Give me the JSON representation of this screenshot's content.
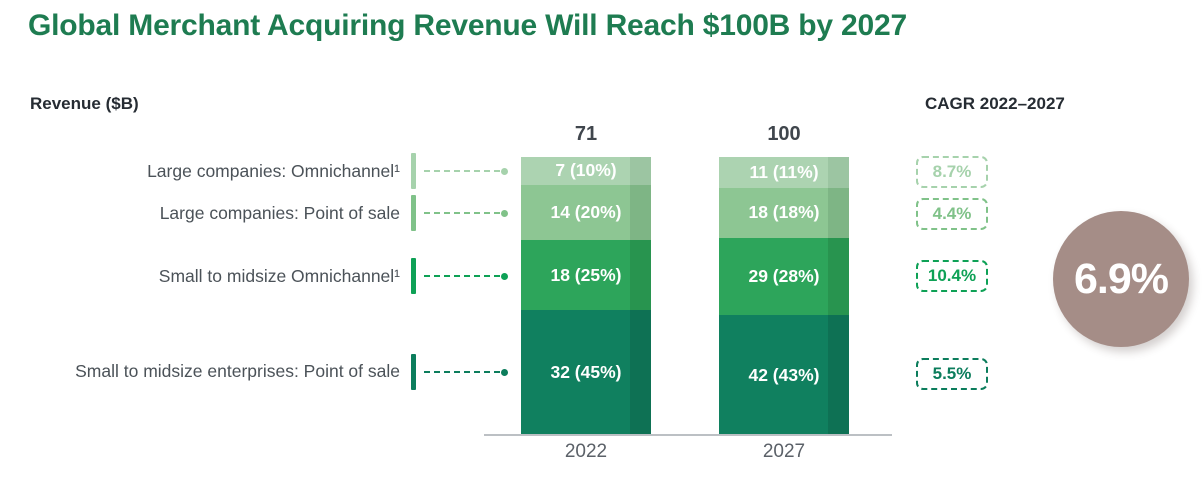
{
  "title": "Global Merchant Acquiring Revenue Will Reach $100B by 2027",
  "left_header": "Revenue ($B)",
  "right_header": "CAGR 2022–2027",
  "highlight": {
    "total_cagr": "6.9%",
    "circle_color": "#a58d87"
  },
  "chart_data": {
    "type": "bar",
    "subtype": "100pct-stacked-column-with-absolute-values",
    "title": "Global Merchant Acquiring Revenue Will Reach $100B by 2027",
    "ylabel": "Revenue ($B)",
    "categories": [
      "2022",
      "2027"
    ],
    "totals": [
      71,
      100
    ],
    "series": [
      {
        "name": "Large companies: Omnichannel¹",
        "values": [
          7,
          11
        ],
        "pct_values": [
          10,
          11
        ],
        "labels": [
          "7 (10%)",
          "11 (11%)"
        ],
        "cagr": "8.7%",
        "color": "#acd3b1",
        "color_edge": "#9cc5a2",
        "accent": "#a6d2ac"
      },
      {
        "name": "Large companies: Point of sale",
        "values": [
          14,
          18
        ],
        "pct_values": [
          20,
          18
        ],
        "labels": [
          "14 (20%)",
          "18 (18%)"
        ],
        "cagr": "4.4%",
        "color": "#8dc693",
        "color_edge": "#7eb585",
        "accent": "#80c289"
      },
      {
        "name": "Small to midsize Omnichannel¹",
        "values": [
          18,
          29
        ],
        "pct_values": [
          25,
          28
        ],
        "labels": [
          "18 (25%)",
          "29 (28%)"
        ],
        "cagr": "10.4%",
        "color": "#2da55b",
        "color_edge": "#28944f",
        "accent": "#0ea156"
      },
      {
        "name": "Small to midsize enterprises: Point of sale",
        "values": [
          32,
          42
        ],
        "pct_values": [
          45,
          43
        ],
        "labels": [
          "32 (45%)",
          "42 (43%)"
        ],
        "cagr": "5.5%",
        "color": "#10805f",
        "color_edge": "#0e7154",
        "accent": "#0c7d5c"
      }
    ],
    "total_cagr": "6.9%",
    "grid": false,
    "legend_position": "left"
  }
}
